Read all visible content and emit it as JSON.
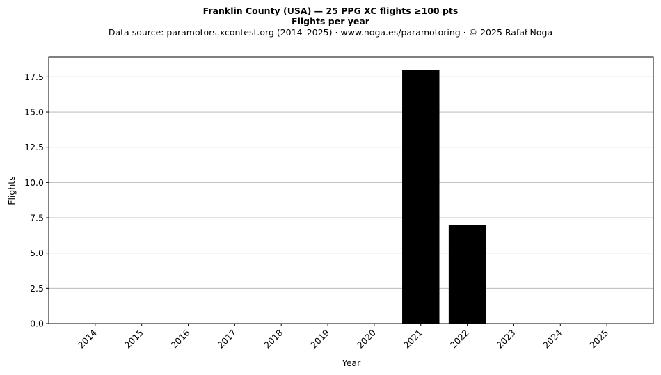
{
  "chart_data": {
    "type": "bar",
    "title": "Franklin County (USA)  —  25 PPG XC flights ≥100 pts",
    "subtitle": "Flights per year",
    "source": "Data source: paramotors.xcontest.org (2014–2025)  ·  www.noga.es/paramotoring  ·  © 2025 Rafał Noga",
    "xlabel": "Year",
    "ylabel": "Flights",
    "categories": [
      "2014",
      "2015",
      "2016",
      "2017",
      "2018",
      "2019",
      "2020",
      "2021",
      "2022",
      "2023",
      "2024",
      "2025"
    ],
    "values": [
      0,
      0,
      0,
      0,
      0,
      0,
      0,
      18,
      7,
      0,
      0,
      0
    ],
    "ylim": [
      0,
      18.9
    ],
    "yticks": [
      "0.0",
      "2.5",
      "5.0",
      "7.5",
      "10.0",
      "12.5",
      "15.0",
      "17.5"
    ],
    "grid": "horizontal",
    "bar_color": "#000000",
    "grid_color": "#b0b0b0"
  }
}
